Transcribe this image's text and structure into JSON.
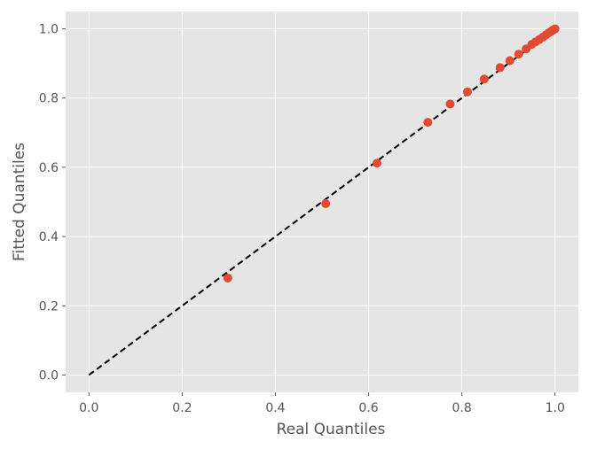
{
  "chart_data": {
    "type": "scatter",
    "title": "",
    "xlabel": "Real Quantiles",
    "ylabel": "Fitted Quantiles",
    "xlim": [
      -0.05,
      1.05
    ],
    "ylim": [
      -0.05,
      1.05
    ],
    "xticks": [
      0.0,
      0.2,
      0.4,
      0.6,
      0.8,
      1.0
    ],
    "yticks": [
      0.0,
      0.2,
      0.4,
      0.6,
      0.8,
      1.0
    ],
    "xtick_labels": [
      "0.0",
      "0.2",
      "0.4",
      "0.6",
      "0.8",
      "1.0"
    ],
    "ytick_labels": [
      "0.0",
      "0.2",
      "0.4",
      "0.6",
      "0.8",
      "1.0"
    ],
    "grid": true,
    "background_color": "#e5e5e5",
    "grid_color": "#ffffff",
    "point_color": "#e24a33",
    "reference_line": {
      "from": [
        0.0,
        0.0
      ],
      "to": [
        1.0,
        1.0
      ],
      "style": "dashed",
      "color": "#000000"
    },
    "points": [
      {
        "x": 0.298,
        "y": 0.28
      },
      {
        "x": 0.508,
        "y": 0.495
      },
      {
        "x": 0.618,
        "y": 0.612
      },
      {
        "x": 0.727,
        "y": 0.73
      },
      {
        "x": 0.775,
        "y": 0.783
      },
      {
        "x": 0.812,
        "y": 0.818
      },
      {
        "x": 0.848,
        "y": 0.855
      },
      {
        "x": 0.882,
        "y": 0.888
      },
      {
        "x": 0.903,
        "y": 0.908
      },
      {
        "x": 0.922,
        "y": 0.927
      },
      {
        "x": 0.938,
        "y": 0.942
      },
      {
        "x": 0.95,
        "y": 0.955
      },
      {
        "x": 0.958,
        "y": 0.962
      },
      {
        "x": 0.966,
        "y": 0.969
      },
      {
        "x": 0.974,
        "y": 0.976
      },
      {
        "x": 0.981,
        "y": 0.983
      },
      {
        "x": 0.987,
        "y": 0.989
      },
      {
        "x": 0.992,
        "y": 0.993
      },
      {
        "x": 0.996,
        "y": 0.997
      },
      {
        "x": 1.0,
        "y": 1.0
      }
    ]
  }
}
